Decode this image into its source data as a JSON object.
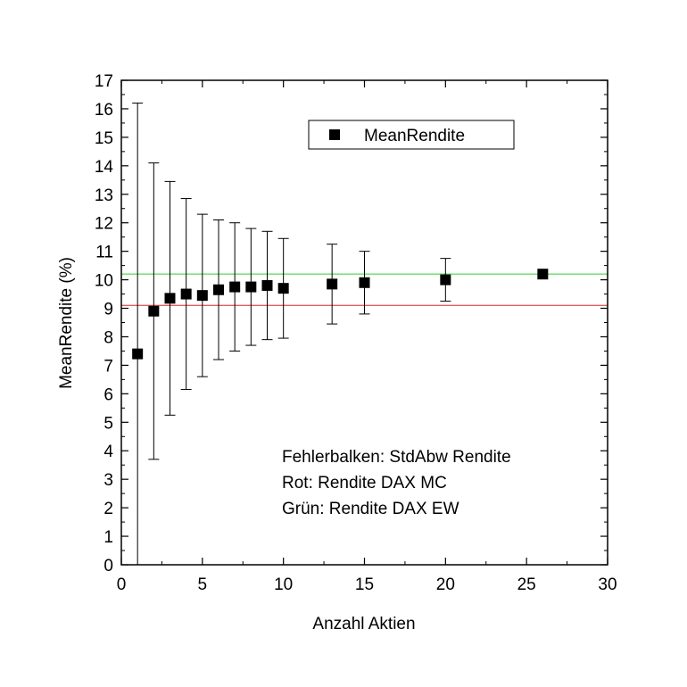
{
  "chart_data": {
    "type": "scatter",
    "xlabel": "Anzahl Aktien",
    "ylabel": "MeanRendite (%)",
    "xlim": [
      0,
      30
    ],
    "ylim": [
      0,
      17
    ],
    "x_ticks": [
      "0",
      "5",
      "10",
      "15",
      "20",
      "25",
      "30"
    ],
    "y_ticks": [
      "0",
      "1",
      "2",
      "3",
      "4",
      "5",
      "6",
      "7",
      "8",
      "9",
      "10",
      "11",
      "12",
      "13",
      "14",
      "15",
      "16",
      "17"
    ],
    "grid": false,
    "legend": {
      "position": "top-right",
      "entries": [
        "MeanRendite"
      ]
    },
    "series": [
      {
        "name": "MeanRendite",
        "marker": "square",
        "color": "#000000",
        "x": [
          1,
          2,
          3,
          4,
          5,
          6,
          7,
          8,
          9,
          10,
          13,
          15,
          20,
          26
        ],
        "y": [
          7.4,
          8.9,
          9.35,
          9.5,
          9.45,
          9.65,
          9.75,
          9.75,
          9.8,
          9.7,
          9.85,
          9.9,
          10.0,
          10.2
        ],
        "error": [
          8.8,
          5.2,
          4.1,
          3.35,
          2.85,
          2.45,
          2.25,
          2.05,
          1.9,
          1.75,
          1.4,
          1.1,
          0.75,
          0.0
        ]
      }
    ],
    "reference_lines": [
      {
        "label": "Rendite DAX MC",
        "y": 9.1,
        "color": "#e06060"
      },
      {
        "label": "Rendite DAX EW",
        "y": 10.2,
        "color": "#66dd66"
      }
    ],
    "annotations": [
      "Fehlerbalken: StdAbw Rendite",
      "Rot: Rendite DAX MC",
      "Grün: Rendite DAX EW"
    ]
  }
}
